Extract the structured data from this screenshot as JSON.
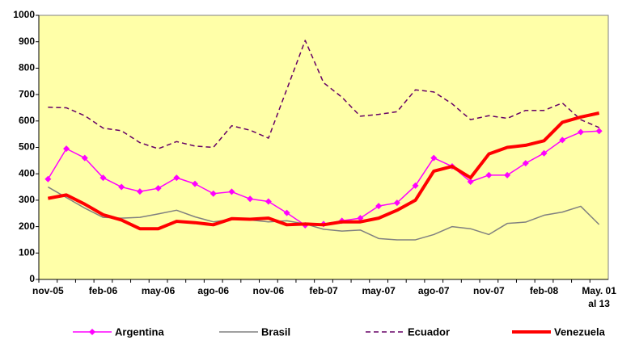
{
  "chart_data": {
    "type": "line",
    "categories": [
      "nov-05",
      null,
      null,
      "feb-06",
      null,
      null,
      "may-06",
      null,
      null,
      "ago-06",
      null,
      null,
      "nov-06",
      null,
      null,
      "feb-07",
      null,
      null,
      "may-07",
      null,
      null,
      "ago-07",
      null,
      null,
      "nov-07",
      null,
      null,
      "feb-08",
      null,
      null,
      "May. 01 al 13"
    ],
    "series": [
      {
        "name": "Argentina",
        "color": "#ff00ff",
        "marker": "diamond",
        "values": [
          380,
          495,
          460,
          385,
          350,
          333,
          345,
          385,
          362,
          325,
          332,
          305,
          295,
          252,
          205,
          210,
          222,
          232,
          278,
          290,
          355,
          460,
          428,
          370,
          395,
          395,
          440,
          478,
          528,
          558,
          562
        ]
      },
      {
        "name": "Brasil",
        "color": "#808080",
        "values": [
          350,
          310,
          270,
          235,
          232,
          235,
          248,
          262,
          237,
          218,
          228,
          225,
          218,
          222,
          210,
          190,
          183,
          187,
          155,
          150,
          150,
          170,
          200,
          192,
          170,
          212,
          217,
          243,
          255,
          277,
          208
        ]
      },
      {
        "name": "Ecuador",
        "color": "#660066",
        "dashed": true,
        "values": [
          652,
          650,
          620,
          573,
          563,
          518,
          495,
          522,
          505,
          500,
          582,
          565,
          535,
          720,
          905,
          745,
          690,
          618,
          625,
          635,
          718,
          710,
          665,
          605,
          620,
          610,
          640,
          640,
          668,
          605,
          575
        ]
      },
      {
        "name": "Venezuela",
        "color": "#ff0000",
        "bold": true,
        "values": [
          307,
          320,
          285,
          245,
          225,
          192,
          192,
          220,
          215,
          207,
          230,
          228,
          232,
          207,
          210,
          207,
          218,
          218,
          232,
          262,
          300,
          410,
          428,
          385,
          475,
          500,
          508,
          525,
          595,
          615,
          630
        ]
      }
    ],
    "ylim": [
      0,
      1000
    ],
    "yticks": [
      0,
      100,
      200,
      300,
      400,
      500,
      600,
      700,
      800,
      900,
      1000
    ],
    "plot_background": "#ffffa8"
  }
}
